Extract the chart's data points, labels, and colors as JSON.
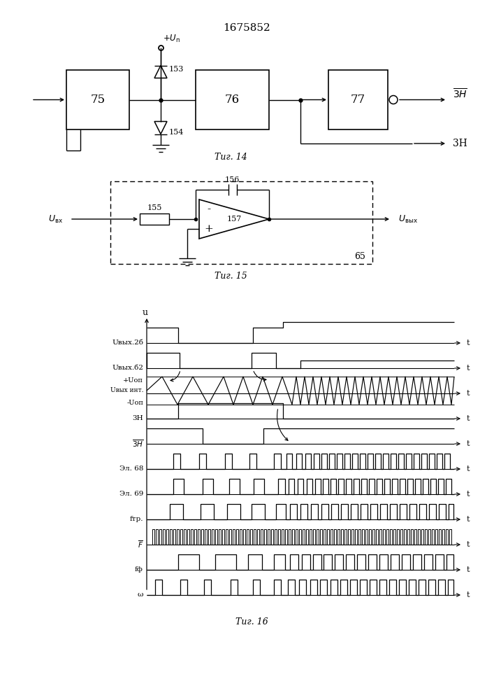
{
  "title": "1675852",
  "bg_color": "#ffffff",
  "line_color": "#000000",
  "fig14_label": "Τиг. 14",
  "fig15_label": "Τиг. 15",
  "fig16_label": "Τиг. 16"
}
